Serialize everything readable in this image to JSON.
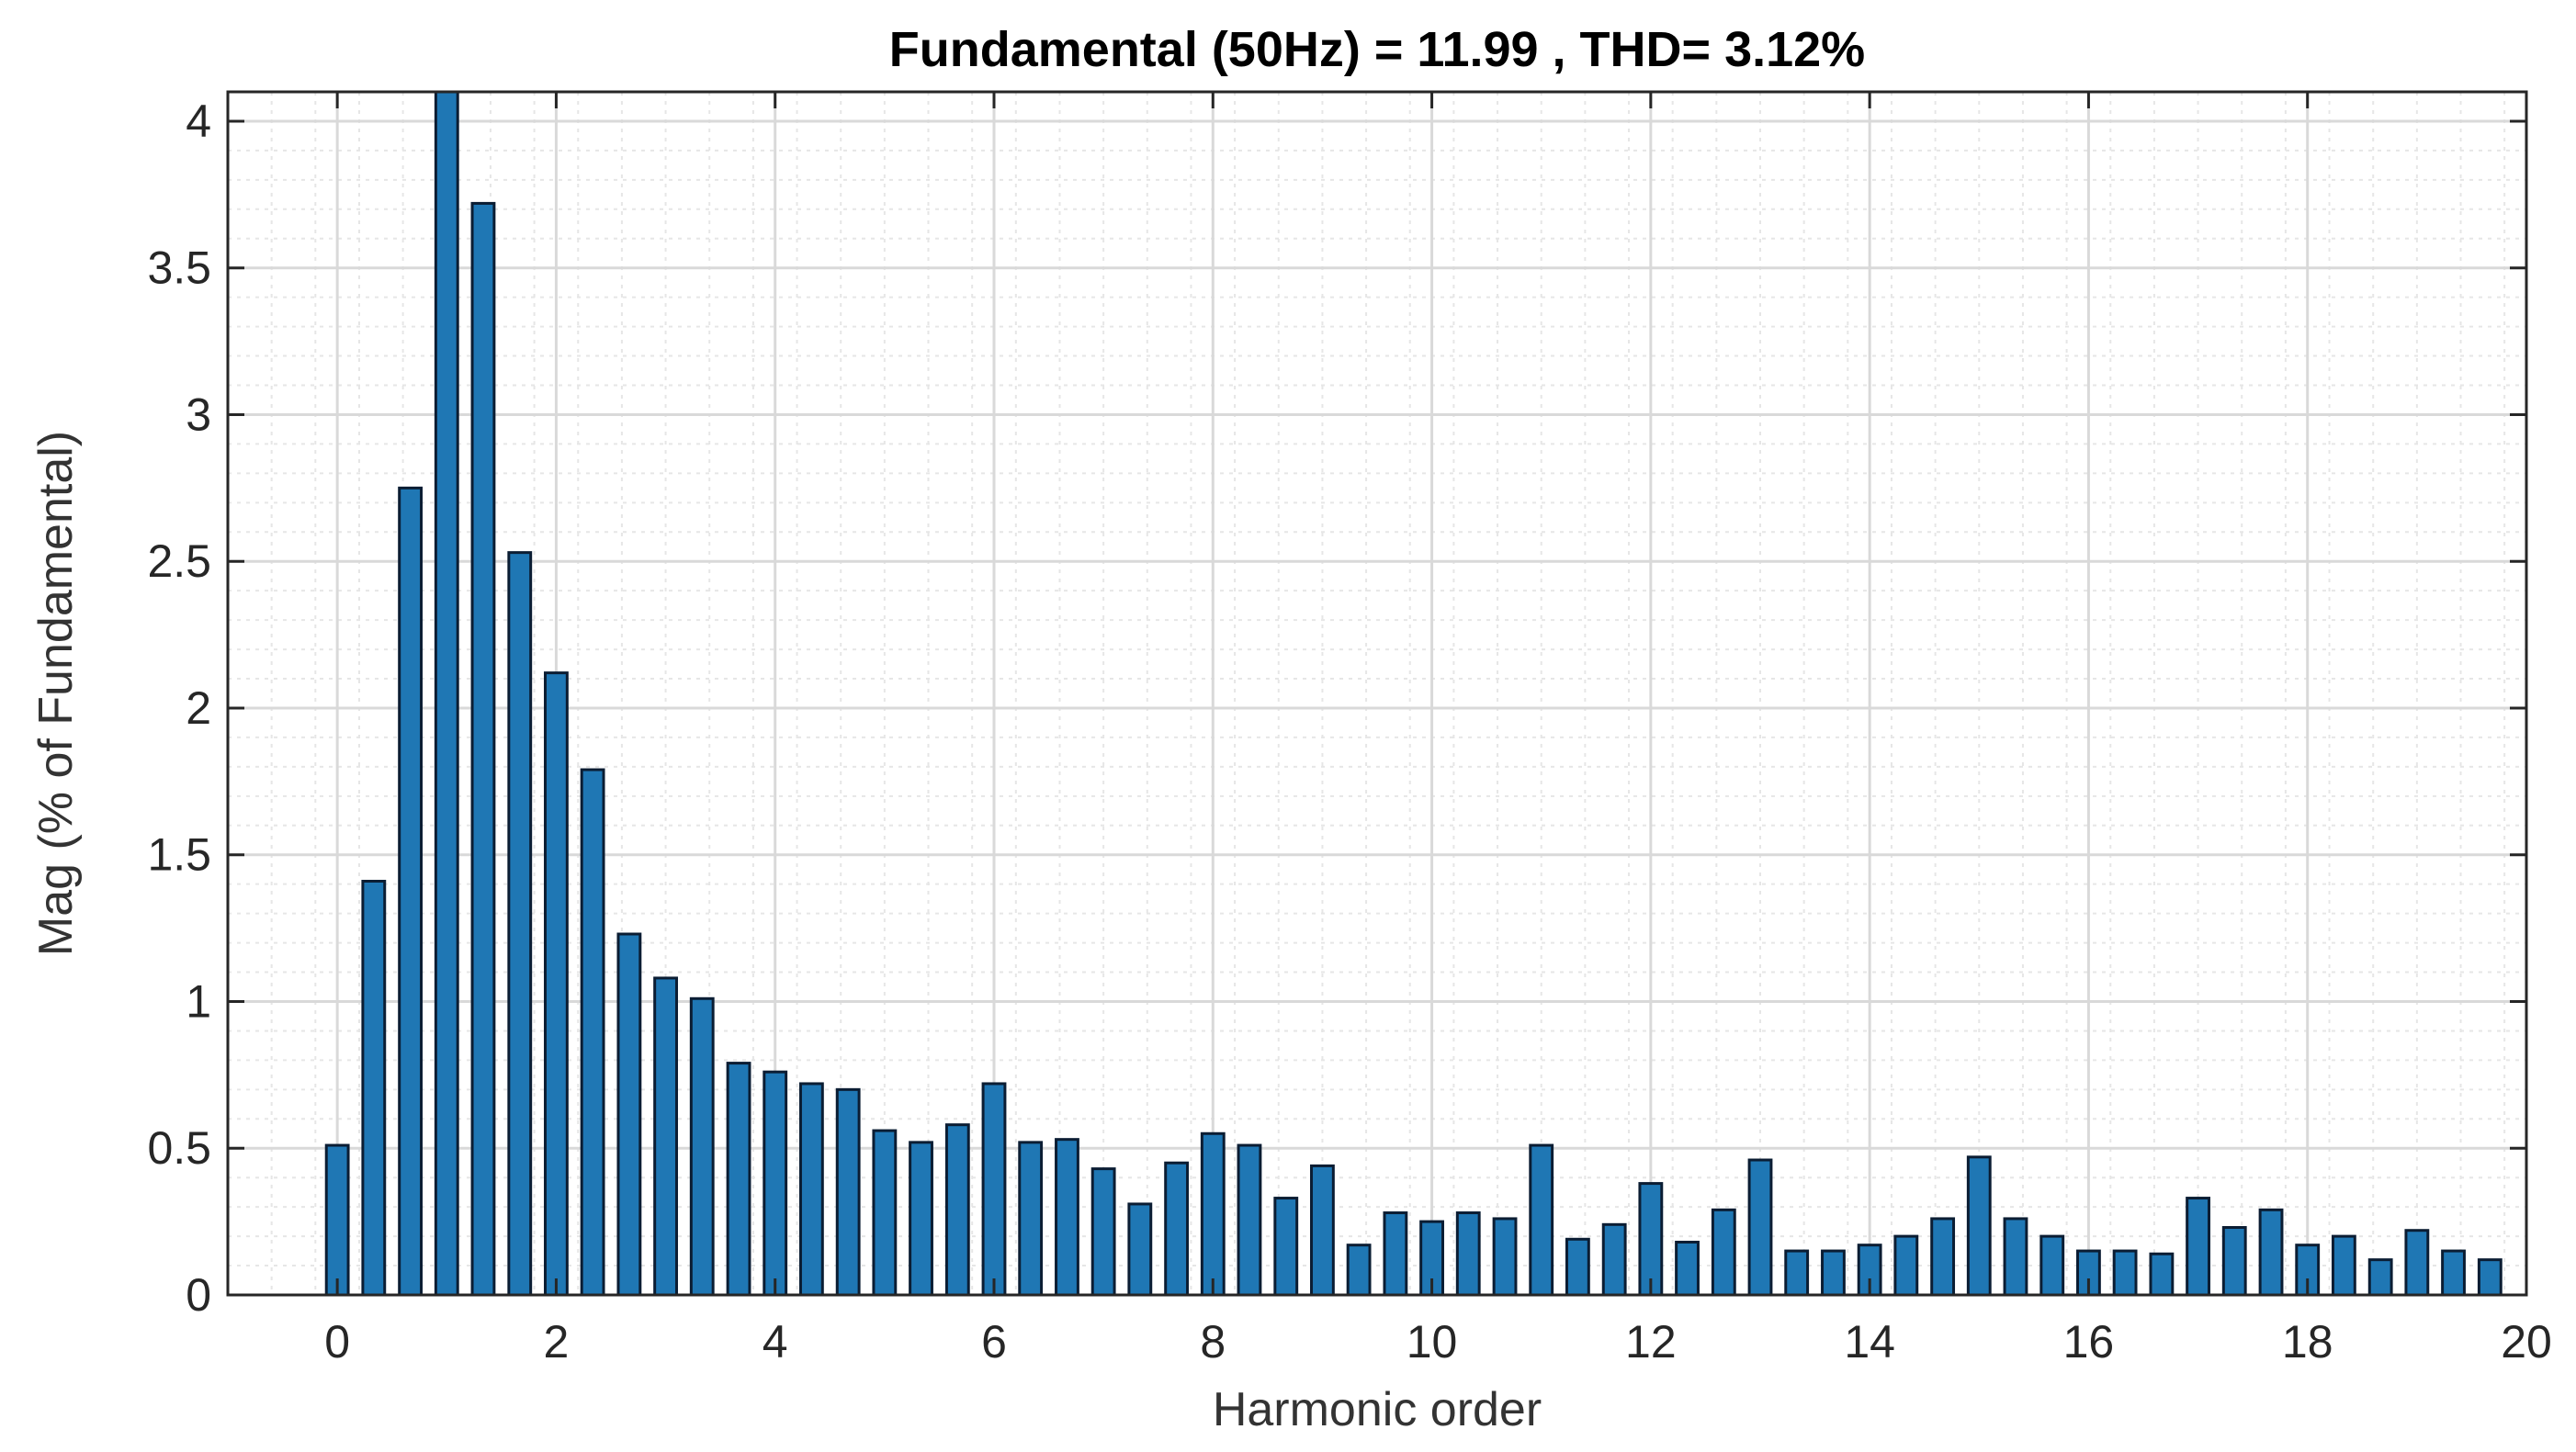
{
  "chart_data": {
    "type": "bar",
    "title": "Fundamental (50Hz) = 11.99 , THD= 3.12%",
    "xlabel": "Harmonic order",
    "ylabel": "Mag (% of Fundamental)",
    "xlim": [
      -1,
      20
    ],
    "ylim": [
      0,
      4.1
    ],
    "grid": true,
    "minor_grid": true,
    "bar_color": "#1f77b4",
    "bar_edge_color": "#0b1d33",
    "xticks": [
      0,
      2,
      4,
      6,
      8,
      10,
      12,
      14,
      16,
      18,
      20
    ],
    "xtick_labels": [
      "0",
      "2",
      "4",
      "6",
      "8",
      "10",
      "12",
      "14",
      "16",
      "18",
      "20"
    ],
    "yticks": [
      0,
      0.5,
      1,
      1.5,
      2,
      2.5,
      3,
      3.5,
      4
    ],
    "ytick_labels": [
      "0",
      "0.5",
      "1",
      "1.5",
      "2",
      "2.5",
      "3",
      "3.5",
      "4"
    ],
    "x": [
      0,
      0.333,
      0.667,
      1,
      1.333,
      1.667,
      2,
      2.333,
      2.667,
      3,
      3.333,
      3.667,
      4,
      4.333,
      4.667,
      5,
      5.333,
      5.667,
      6,
      6.333,
      6.667,
      7,
      7.333,
      7.667,
      8,
      8.333,
      8.667,
      9,
      9.333,
      9.667,
      10,
      10.333,
      10.667,
      11,
      11.333,
      11.667,
      12,
      12.333,
      12.667,
      13,
      13.333,
      13.667,
      14,
      14.333,
      14.667,
      15,
      15.333,
      15.667,
      16,
      16.333,
      16.667,
      17,
      17.333,
      17.667,
      18,
      18.333,
      18.667,
      19,
      19.333,
      19.667
    ],
    "values": [
      0.51,
      1.41,
      2.75,
      4.1,
      3.72,
      2.53,
      2.12,
      1.79,
      1.23,
      1.08,
      1.01,
      0.79,
      0.76,
      0.72,
      0.7,
      0.56,
      0.52,
      0.58,
      0.72,
      0.52,
      0.53,
      0.43,
      0.31,
      0.45,
      0.55,
      0.51,
      0.33,
      0.44,
      0.17,
      0.28,
      0.25,
      0.28,
      0.26,
      0.51,
      0.19,
      0.24,
      0.38,
      0.18,
      0.29,
      0.46,
      0.15,
      0.15,
      0.17,
      0.2,
      0.26,
      0.47,
      0.26,
      0.2,
      0.15,
      0.15,
      0.14,
      0.33,
      0.23,
      0.29,
      0.17,
      0.2,
      0.12,
      0.22,
      0.15,
      0.12
    ]
  }
}
